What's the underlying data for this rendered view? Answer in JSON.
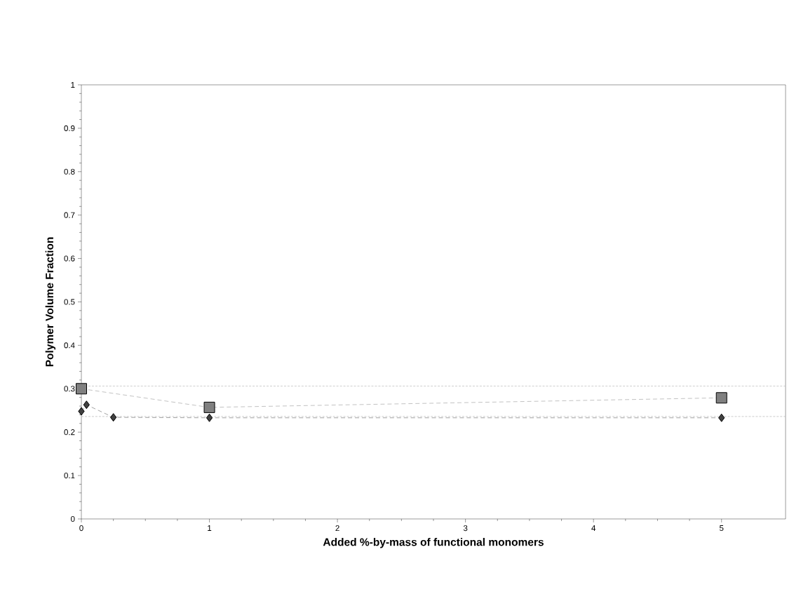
{
  "chart_data": {
    "type": "line",
    "xlabel": "Added %-by-mass of functional monomers",
    "ylabel": "Polymer Volume Fraction",
    "xlim": [
      0,
      5.5
    ],
    "xticks": [
      0,
      1,
      2,
      3,
      4,
      5
    ],
    "ylim": [
      0,
      1
    ],
    "yticks": [
      0,
      0.1,
      0.2,
      0.3,
      0.4,
      0.5,
      0.6,
      0.7,
      0.8,
      0.9,
      1
    ],
    "grid": false,
    "line_style": "dashed",
    "series": [
      {
        "x": [
          0,
          1,
          5
        ],
        "values": [
          0.3,
          0.257,
          0.279
        ],
        "color": "#808080",
        "marker": "square"
      },
      {
        "x": [
          0,
          0.04,
          0.25,
          1,
          5
        ],
        "values": [
          0.248,
          0.263,
          0.234,
          0.233,
          0.233
        ],
        "color": "#404040",
        "marker": "diamond"
      }
    ],
    "ref_lines": [
      {
        "axis": "y",
        "value": 0.306,
        "color": "#bfbfbf",
        "line_style": "dashed"
      },
      {
        "axis": "y",
        "value": 0.236,
        "color": "#bfbfbf",
        "line_style": "dashed"
      }
    ]
  }
}
